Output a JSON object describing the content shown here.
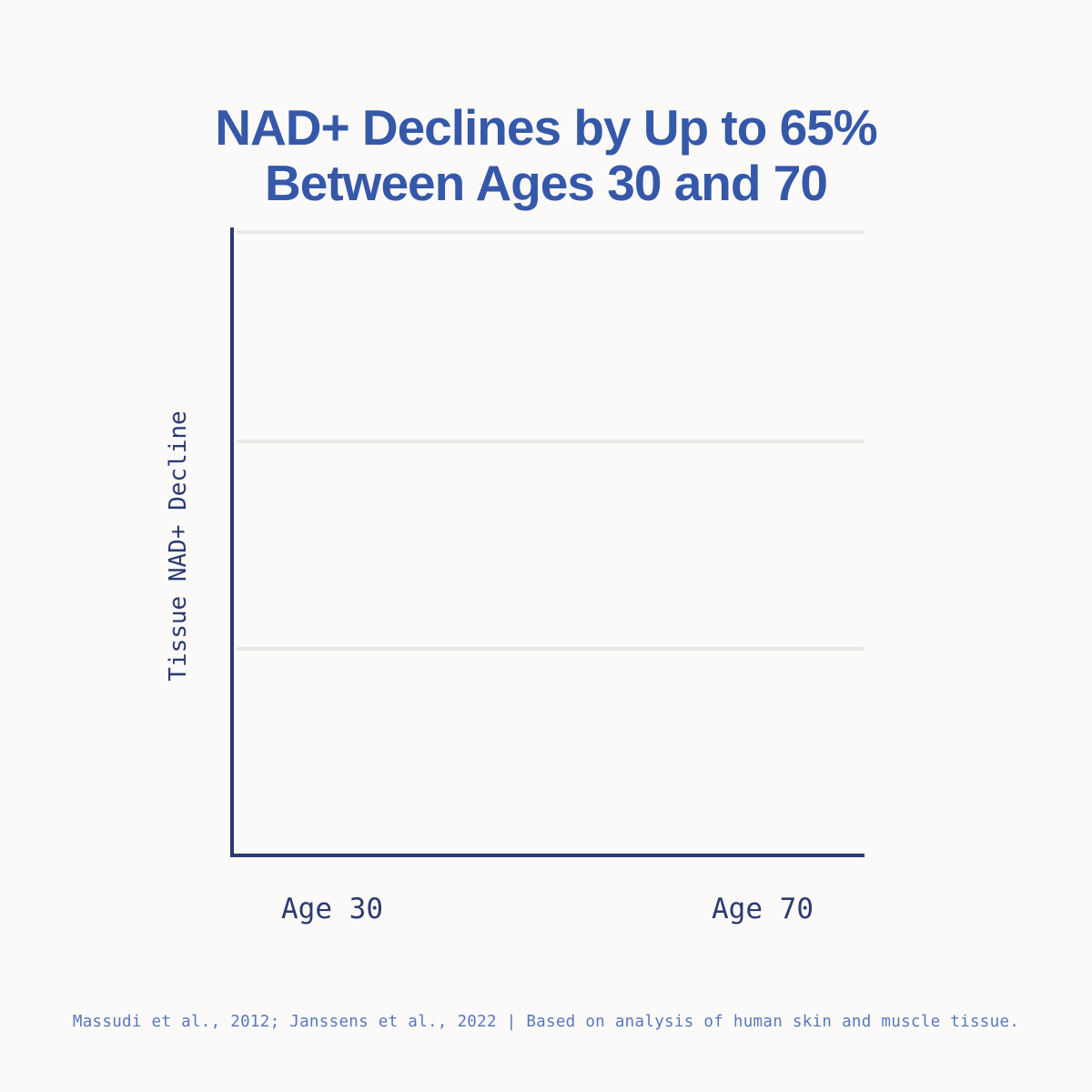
{
  "title": {
    "line1": "NAD+ Declines by Up to 65%",
    "line2": "Between Ages 30 and 70"
  },
  "chart": {
    "y_axis_label": "Tissue NAD+ Decline",
    "x_tick_labels": [
      "Age 30",
      "Age 70"
    ]
  },
  "footer": {
    "source": "Massudi et al., 2012; Janssens et al., 2022 | Based on analysis of human skin and muscle tissue."
  },
  "colors": {
    "background": "#fbfaf8",
    "title_blue": "#3558a9",
    "axis_navy": "#2b3a72",
    "tick_label_navy": "#2c3a72",
    "footer_blue": "#5977be",
    "gridline_gray": "#e9e8e5"
  },
  "chart_data": {
    "type": "line",
    "title": "NAD+ Declines by Up to 65% Between Ages 30 and 70",
    "categories": [
      "Age 30",
      "Age 70"
    ],
    "series": [],
    "xlabel": "",
    "ylabel": "Tissue NAD+ Decline",
    "y_tick_labels": [],
    "grid": "3 equally spaced horizontal gridlines above baseline axis; plot area is empty (no data line rendered in this frame)",
    "legend": "none",
    "annotations": [
      "Massudi et al., 2012; Janssens et al., 2022 | Based on analysis of human skin and muscle tissue."
    ]
  }
}
